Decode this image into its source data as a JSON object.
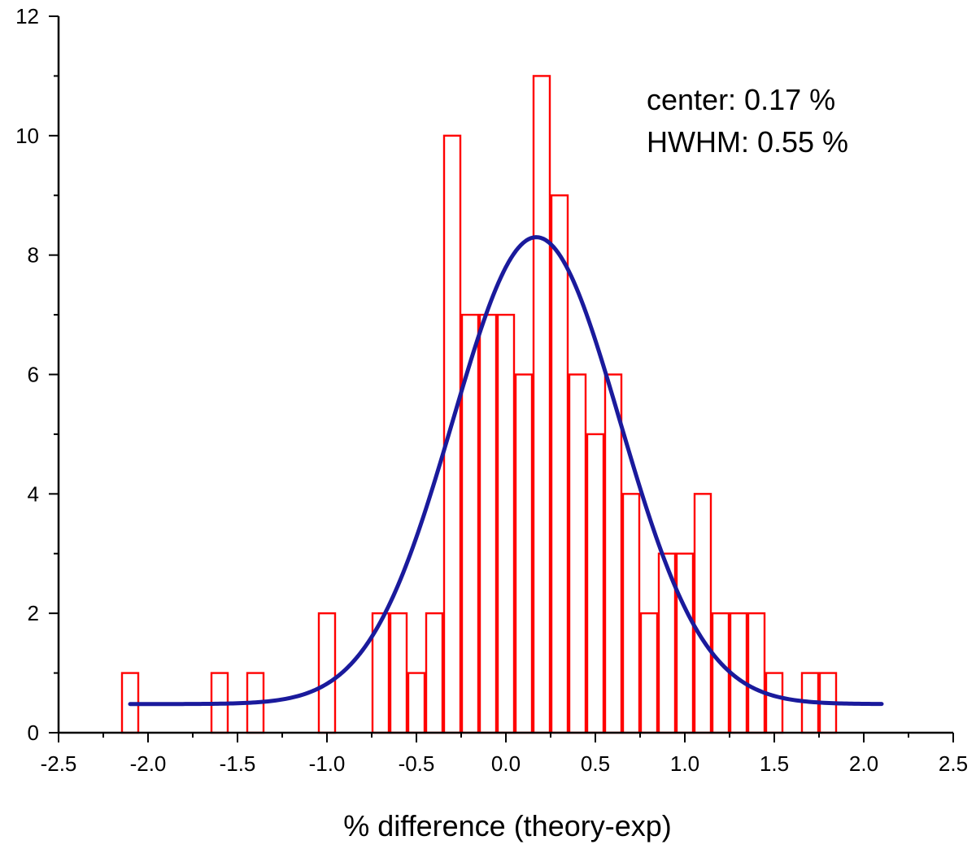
{
  "chart_data": {
    "type": "bar",
    "title": "",
    "xlabel": "% difference (theory-exp)",
    "ylabel": "",
    "xlim": [
      -2.5,
      2.5
    ],
    "ylim": [
      0,
      12
    ],
    "x_ticks": [
      "-2.5",
      "-2.0",
      "-1.5",
      "-1.0",
      "-0.5",
      "0.0",
      "0.5",
      "1.0",
      "1.5",
      "2.0",
      "2.5"
    ],
    "y_ticks": [
      "0",
      "2",
      "4",
      "6",
      "8",
      "10",
      "12"
    ],
    "grid": false,
    "bin_width": 0.1,
    "histogram": [
      {
        "x": -2.1,
        "y": 1
      },
      {
        "x": -1.6,
        "y": 1
      },
      {
        "x": -1.4,
        "y": 1
      },
      {
        "x": -1.0,
        "y": 2
      },
      {
        "x": -0.7,
        "y": 2
      },
      {
        "x": -0.6,
        "y": 2
      },
      {
        "x": -0.5,
        "y": 1
      },
      {
        "x": -0.4,
        "y": 2
      },
      {
        "x": -0.3,
        "y": 10
      },
      {
        "x": -0.2,
        "y": 7
      },
      {
        "x": -0.1,
        "y": 7
      },
      {
        "x": 0.0,
        "y": 7
      },
      {
        "x": 0.1,
        "y": 6
      },
      {
        "x": 0.2,
        "y": 11
      },
      {
        "x": 0.3,
        "y": 9
      },
      {
        "x": 0.4,
        "y": 6
      },
      {
        "x": 0.5,
        "y": 5
      },
      {
        "x": 0.6,
        "y": 6
      },
      {
        "x": 0.7,
        "y": 4
      },
      {
        "x": 0.8,
        "y": 2
      },
      {
        "x": 0.9,
        "y": 3
      },
      {
        "x": 1.0,
        "y": 3
      },
      {
        "x": 1.1,
        "y": 4
      },
      {
        "x": 1.2,
        "y": 2
      },
      {
        "x": 1.3,
        "y": 2
      },
      {
        "x": 1.4,
        "y": 2
      },
      {
        "x": 1.5,
        "y": 1
      },
      {
        "x": 1.7,
        "y": 1
      },
      {
        "x": 1.8,
        "y": 1
      }
    ],
    "fit": {
      "type": "gaussian",
      "center": 0.17,
      "hwhm": 0.55,
      "baseline": 0.48,
      "amplitude": 7.82,
      "x_range": [
        -2.1,
        2.1
      ]
    },
    "annotations": [
      "center: 0.17 %",
      "HWHM: 0.55 %"
    ],
    "colors": {
      "bars": "#ff0000",
      "fit": "#1a1a9c",
      "axis": "#000000"
    }
  }
}
